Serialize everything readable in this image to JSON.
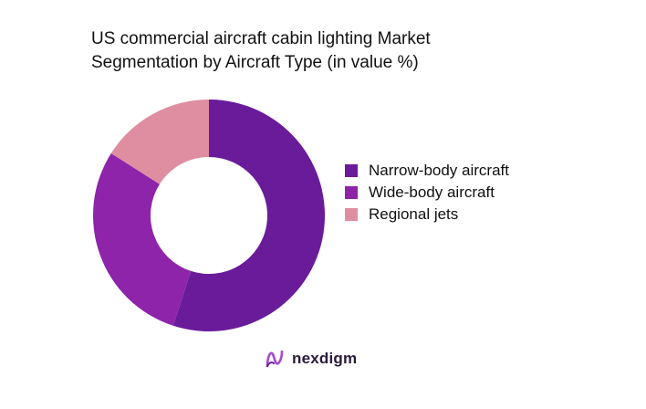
{
  "title_lines": [
    "US commercial aircraft cabin lighting Market",
    "Segmentation by Aircraft Type (in value %)"
  ],
  "brand": {
    "name": "nexdigm",
    "logo_icon": "nexdigm-logo-icon"
  },
  "chart_data": {
    "type": "pie",
    "variant": "donut",
    "title": "US commercial aircraft cabin lighting Market Segmentation by Aircraft Type (in value %)",
    "legend_position": "right",
    "slices": [
      {
        "label": "Narrow-body aircraft",
        "value": 55,
        "color": "#6a1b9a"
      },
      {
        "label": "Wide-body aircraft",
        "value": 29,
        "color": "#8e24aa"
      },
      {
        "label": "Regional jets",
        "value": 16,
        "color": "#df8ea1"
      }
    ]
  }
}
